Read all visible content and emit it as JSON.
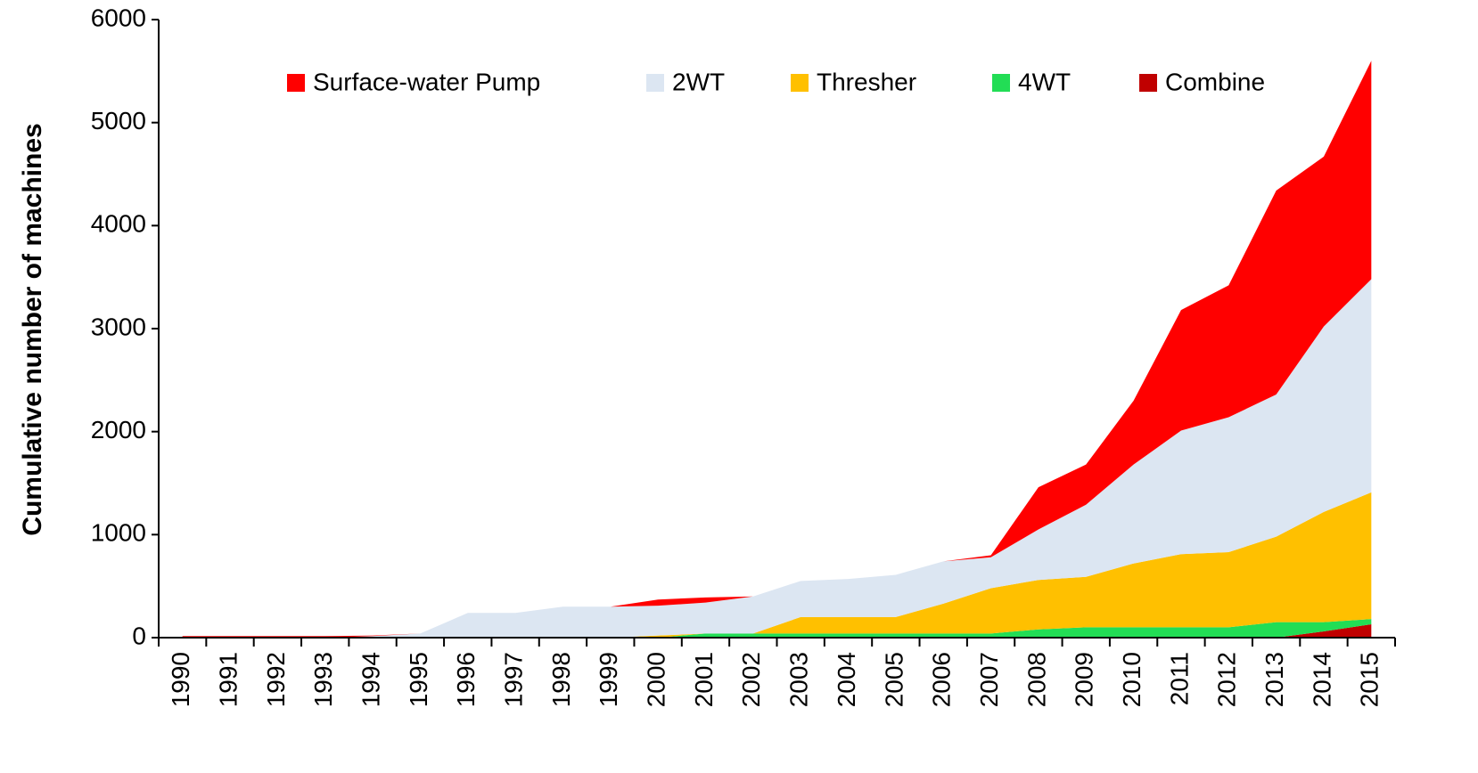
{
  "chart_data": {
    "type": "stacked_area",
    "ylabel": "Cumulative number of machines",
    "categories": [
      "1990",
      "1991",
      "1992",
      "1993",
      "1994",
      "1995",
      "1996",
      "1997",
      "1998",
      "1999",
      "2000",
      "2001",
      "2002",
      "2003",
      "2004",
      "2005",
      "2006",
      "2007",
      "2008",
      "2009",
      "2010",
      "2011",
      "2012",
      "2013",
      "2014",
      "2015"
    ],
    "series": [
      {
        "name": "Combine",
        "color": "#c00000",
        "values": [
          0,
          0,
          0,
          0,
          0,
          0,
          0,
          0,
          0,
          0,
          0,
          0,
          0,
          0,
          0,
          0,
          0,
          0,
          0,
          0,
          0,
          0,
          0,
          0,
          60,
          130
        ]
      },
      {
        "name": "4WT",
        "color": "#22dd55",
        "values": [
          0,
          0,
          0,
          0,
          0,
          0,
          0,
          0,
          0,
          0,
          0,
          40,
          40,
          40,
          40,
          40,
          40,
          40,
          80,
          100,
          100,
          100,
          100,
          150,
          90,
          50
        ]
      },
      {
        "name": "Thresher",
        "color": "#ffc000",
        "values": [
          0,
          0,
          0,
          0,
          0,
          0,
          0,
          0,
          0,
          0,
          20,
          0,
          0,
          160,
          160,
          160,
          290,
          440,
          480,
          490,
          620,
          710,
          730,
          830,
          1070,
          1230
        ]
      },
      {
        "name": "2WT",
        "color": "#dce6f2",
        "values": [
          0,
          0,
          0,
          0,
          15,
          40,
          240,
          240,
          300,
          300,
          290,
          300,
          360,
          350,
          370,
          410,
          410,
          300,
          490,
          700,
          960,
          1200,
          1310,
          1380,
          1800,
          2070
        ]
      },
      {
        "name": "Surface-water Pump",
        "color": "#ff0000",
        "values": [
          15,
          15,
          15,
          15,
          5,
          0,
          0,
          0,
          0,
          0,
          60,
          50,
          0,
          0,
          0,
          0,
          0,
          20,
          410,
          390,
          620,
          1170,
          1280,
          1980,
          1650,
          2120
        ]
      }
    ],
    "legend_order": [
      4,
      3,
      2,
      1,
      0
    ],
    "ylim": [
      0,
      6000
    ],
    "yticks": [
      0,
      1000,
      2000,
      3000,
      4000,
      5000,
      6000
    ],
    "grid": false
  }
}
